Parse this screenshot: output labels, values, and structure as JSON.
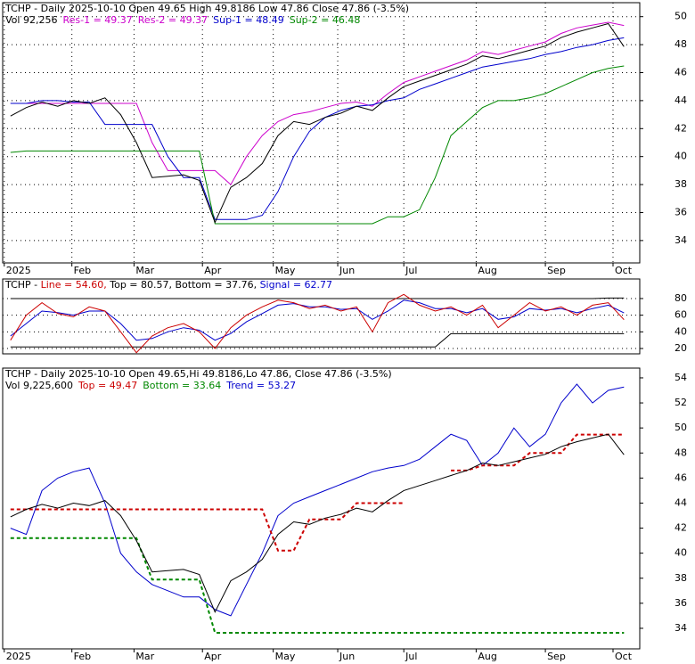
{
  "chart_data": [
    {
      "type": "line",
      "header": "TCHP - Daily 2025-10-10 Open 49.65  High 49.8186  Low 47.86  Close 47.86 (-3.5%)",
      "legend": [
        {
          "text": "Vol 92,256",
          "color": "#000000"
        },
        {
          "text": "Res-1 = 49.37",
          "color": "#cc00cc"
        },
        {
          "text": "Res-2 = 49.37",
          "color": "#cc00cc"
        },
        {
          "text": "Sup-1 = 48.49",
          "color": "#0000cc"
        },
        {
          "text": "Sup-2 = 46.48",
          "color": "#008800"
        }
      ],
      "xlim": [
        0,
        40.5
      ],
      "xticks": [
        {
          "value": 0.1,
          "label": "2025"
        },
        {
          "value": 4.4,
          "label": "Feb"
        },
        {
          "value": 8.35,
          "label": "Mar"
        },
        {
          "value": 12.7,
          "label": "Apr"
        },
        {
          "value": 17.2,
          "label": "May"
        },
        {
          "value": 21.3,
          "label": "Jun"
        },
        {
          "value": 25.5,
          "label": "Jul"
        },
        {
          "value": 30.1,
          "label": "Aug"
        },
        {
          "value": 34.5,
          "label": "Sep"
        },
        {
          "value": 38.8,
          "label": "Oct"
        }
      ],
      "ylim": [
        32.4,
        51
      ],
      "yticks": [
        34,
        36,
        38,
        40,
        42,
        44,
        46,
        48,
        50
      ],
      "grid": true,
      "series": [
        {
          "color": "#cc00cc",
          "values": [
            43.8,
            43.8,
            43.8,
            43.8,
            43.8,
            43.8,
            43.8,
            43.8,
            43.8,
            41,
            39,
            39,
            39,
            39,
            38,
            40,
            41.5,
            42.5,
            43,
            43.2,
            43.5,
            43.8,
            43.9,
            43.6,
            44.5,
            45.3,
            45.7,
            46.1,
            46.5,
            46.9,
            47.5,
            47.3,
            47.6,
            47.9,
            48.2,
            48.8,
            49.2,
            49.4,
            49.6,
            49.37
          ]
        },
        {
          "color": "#0000cc",
          "values": [
            43.8,
            43.8,
            44.0,
            44.0,
            43.9,
            43.9,
            42.3,
            42.3,
            42.3,
            42.3,
            40.0,
            38.5,
            38.5,
            35.5,
            35.5,
            35.5,
            35.8,
            37.5,
            40,
            41.8,
            42.8,
            43.3,
            43.6,
            43.7,
            44.0,
            44.2,
            44.8,
            45.2,
            45.6,
            46.0,
            46.4,
            46.6,
            46.8,
            47.0,
            47.3,
            47.5,
            47.8,
            48.0,
            48.3,
            48.49
          ]
        },
        {
          "color": "#008800",
          "values": [
            40.3,
            40.4,
            40.4,
            40.4,
            40.4,
            40.4,
            40.4,
            40.4,
            40.4,
            40.4,
            40.4,
            40.4,
            40.4,
            35.2,
            35.2,
            35.2,
            35.2,
            35.2,
            35.2,
            35.2,
            35.2,
            35.2,
            35.2,
            35.2,
            35.7,
            35.7,
            36.2,
            38.5,
            41.5,
            42.5,
            43.5,
            44.0,
            44.0,
            44.2,
            44.5,
            45.0,
            45.5,
            46.0,
            46.3,
            46.48
          ]
        },
        {
          "color": "#000000",
          "values": [
            42.9,
            43.5,
            43.9,
            43.6,
            44.0,
            43.8,
            44.2,
            43.0,
            41.0,
            38.5,
            38.6,
            38.7,
            38.3,
            35.3,
            37.8,
            38.5,
            39.5,
            41.5,
            42.5,
            42.3,
            42.8,
            43.1,
            43.6,
            43.3,
            44.2,
            45.0,
            45.4,
            45.8,
            46.2,
            46.6,
            47.2,
            47.0,
            47.3,
            47.6,
            47.9,
            48.5,
            48.9,
            49.2,
            49.5,
            47.86
          ]
        }
      ]
    },
    {
      "type": "line",
      "legend": [
        {
          "text": "TCHP - ",
          "color": "#000000"
        },
        {
          "text": "Line = 54.60, ",
          "color": "#cc0000"
        },
        {
          "text": "Top = 80.57, ",
          "color": "#000000"
        },
        {
          "text": "Bottom = 37.76, ",
          "color": "#000000"
        },
        {
          "text": "Signal = 62.77",
          "color": "#0000cc"
        }
      ],
      "xlim": [
        0,
        40.5
      ],
      "ylim": [
        13.6,
        103.5
      ],
      "yticks": [
        20,
        40,
        60,
        80
      ],
      "grid": true,
      "series": [
        {
          "color": "#000000",
          "values": [
            80,
            80,
            80,
            80,
            80,
            80,
            80,
            80,
            80,
            80,
            80,
            80,
            80,
            80,
            80,
            80,
            80,
            80,
            80,
            80,
            80,
            80,
            80,
            80,
            80,
            80,
            80,
            80,
            80,
            80,
            80,
            80,
            80,
            80,
            80,
            80,
            80,
            80,
            80.57,
            80.57
          ]
        },
        {
          "color": "#000000",
          "values": [
            22,
            22,
            22,
            22,
            22,
            22,
            22,
            22,
            22,
            22,
            22,
            22,
            22,
            22,
            22,
            22,
            22,
            22,
            22,
            22,
            22,
            22,
            22,
            22,
            22,
            22,
            22,
            22,
            37.76,
            37.76,
            37.76,
            37.76,
            37.76,
            37.76,
            37.76,
            37.76,
            37.76,
            37.76,
            37.76,
            37.76
          ]
        },
        {
          "color": "#0000cc",
          "values": [
            35,
            50,
            65,
            63,
            60,
            65,
            65,
            50,
            30,
            32,
            40,
            45,
            42,
            30,
            38,
            52,
            62,
            72,
            74,
            70,
            70,
            67,
            68,
            55,
            65,
            78,
            75,
            68,
            68,
            63,
            68,
            55,
            58,
            68,
            66,
            68,
            63,
            68,
            72,
            62.77
          ]
        },
        {
          "color": "#cc0000",
          "values": [
            30,
            60,
            75,
            62,
            58,
            70,
            65,
            40,
            15,
            35,
            45,
            50,
            40,
            20,
            45,
            60,
            70,
            78,
            75,
            68,
            72,
            65,
            70,
            40,
            75,
            85,
            72,
            65,
            70,
            60,
            72,
            45,
            60,
            75,
            65,
            70,
            60,
            72,
            75,
            54.6
          ]
        }
      ]
    },
    {
      "type": "line",
      "header": "TCHP - Daily 2025-10-10 Open 49.65,Hi 49.8186,Lo 47.86, Close 47.86 (-3.5%)",
      "legend": [
        {
          "text": "Vol 9,225,600",
          "color": "#000000"
        },
        {
          "text": "Top = 49.47",
          "color": "#cc0000"
        },
        {
          "text": "Bottom = 33.64",
          "color": "#008800"
        },
        {
          "text": "Trend = 53.27",
          "color": "#0000cc"
        }
      ],
      "xlim": [
        0,
        40.5
      ],
      "xticks": [
        {
          "value": 0.1,
          "label": "2025"
        },
        {
          "value": 4.4,
          "label": "Feb"
        },
        {
          "value": 8.35,
          "label": "Mar"
        },
        {
          "value": 12.7,
          "label": "Apr"
        },
        {
          "value": 17.2,
          "label": "May"
        },
        {
          "value": 21.3,
          "label": "Jun"
        },
        {
          "value": 25.5,
          "label": "Jul"
        },
        {
          "value": 30.1,
          "label": "Aug"
        },
        {
          "value": 34.5,
          "label": "Sep"
        },
        {
          "value": 38.8,
          "label": "Oct"
        }
      ],
      "ylim": [
        32.36,
        54.78
      ],
      "yticks": [
        34,
        36,
        38,
        40,
        42,
        44,
        46,
        48,
        50,
        52,
        54
      ],
      "grid": false,
      "series": [
        {
          "color": "#0000cc",
          "values": [
            42,
            41.5,
            45,
            46,
            46.5,
            46.8,
            44,
            40,
            38.5,
            37.5,
            37,
            36.5,
            36.5,
            35.5,
            35,
            37.5,
            40,
            43,
            44,
            44.5,
            45,
            45.5,
            46,
            46.5,
            46.8,
            47.0,
            47.5,
            48.5,
            49.5,
            49.0,
            47.0,
            48,
            50,
            48.5,
            49.5,
            52,
            53.5,
            52,
            53,
            53.27
          ]
        },
        {
          "color": "#cc0000",
          "dash": true,
          "values": [
            43.5,
            43.5,
            43.5,
            43.5,
            43.5,
            43.5,
            43.5,
            43.5,
            43.5,
            43.5,
            43.5,
            43.5,
            43.5,
            43.5,
            43.5,
            43.5,
            43.5,
            40.2,
            40.2,
            42.7,
            42.7,
            42.7,
            44,
            44,
            44,
            44,
            null,
            null,
            46.6,
            46.6,
            47,
            47,
            47,
            48,
            48,
            48,
            49.47,
            49.47,
            49.47,
            49.47
          ]
        },
        {
          "color": "#008800",
          "dash": true,
          "values": [
            41.2,
            41.2,
            41.2,
            41.2,
            41.2,
            41.2,
            41.2,
            41.2,
            41.2,
            37.9,
            37.9,
            37.9,
            37.9,
            33.64,
            33.64,
            33.64,
            33.64,
            33.64,
            33.64,
            33.64,
            33.64,
            33.64,
            33.64,
            33.64,
            33.64,
            33.64,
            33.64,
            33.64,
            33.64,
            33.64,
            33.64,
            33.64,
            33.64,
            33.64,
            33.64,
            33.64,
            33.64,
            33.64,
            33.64,
            33.64
          ]
        },
        {
          "color": "#000000",
          "values": [
            42.9,
            43.5,
            43.9,
            43.6,
            44.0,
            43.8,
            44.2,
            43.0,
            41.0,
            38.5,
            38.6,
            38.7,
            38.3,
            35.3,
            37.8,
            38.5,
            39.5,
            41.5,
            42.5,
            42.3,
            42.8,
            43.1,
            43.6,
            43.3,
            44.2,
            45.0,
            45.4,
            45.8,
            46.2,
            46.6,
            47.2,
            47.0,
            47.3,
            47.6,
            47.9,
            48.5,
            48.9,
            49.2,
            49.5,
            47.86
          ]
        }
      ]
    }
  ]
}
